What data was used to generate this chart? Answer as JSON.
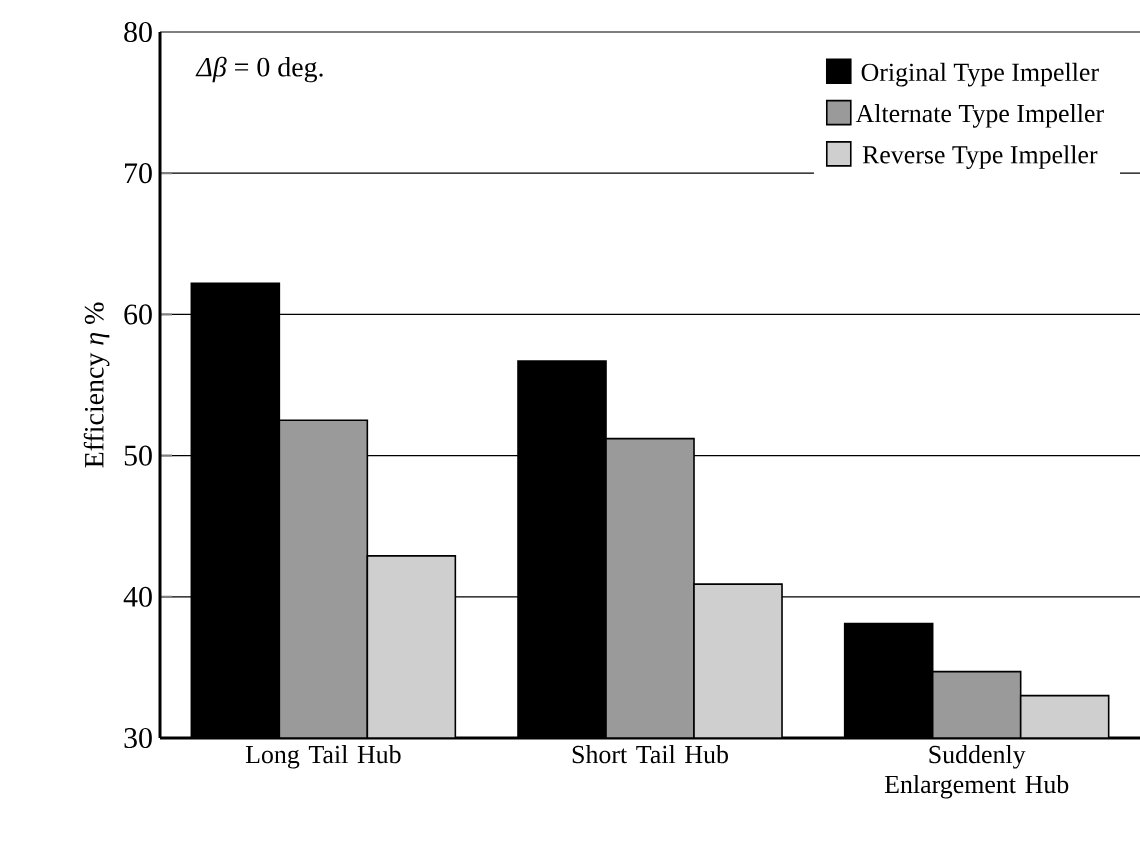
{
  "chart_data": {
    "type": "bar",
    "ylabel": "Efficiency *η* %",
    "categories": [
      "Long Tail Hub",
      "Short Tail Hub",
      "Suddenly Enlargement Hub"
    ],
    "series": [
      {
        "name": "Original Type Impeller",
        "color": "#000000",
        "values": [
          62.2,
          56.7,
          38.1
        ]
      },
      {
        "name": "Alternate Type Impeller",
        "color": "#9a9a9a",
        "values": [
          52.5,
          51.2,
          34.7
        ]
      },
      {
        "name": "Reverse Type Impeller",
        "color": "#cfcfcf",
        "values": [
          42.9,
          40.9,
          33.0
        ]
      }
    ],
    "ylim": [
      30,
      80
    ],
    "yticks": [
      30,
      40,
      50,
      60,
      70,
      80
    ],
    "grid": "y",
    "legend": "top right",
    "annotations": [
      "*Δβ* = 0 deg."
    ]
  }
}
